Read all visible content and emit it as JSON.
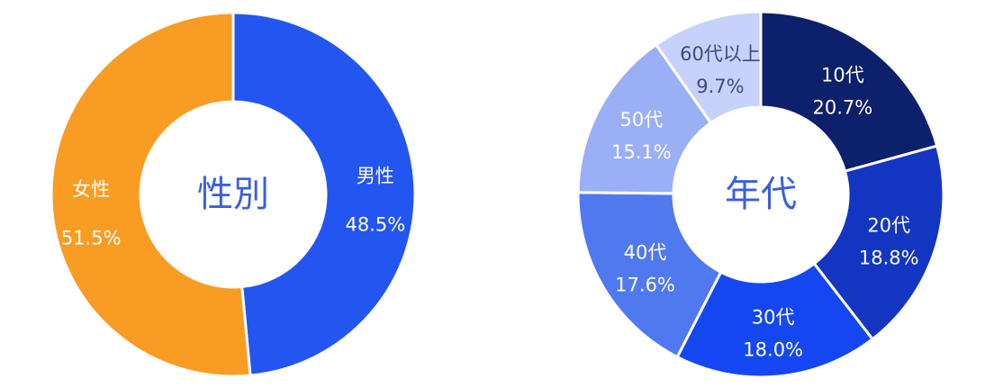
{
  "chart_data": [
    {
      "type": "pie",
      "title": "性別",
      "title_color": "#3a5fdd",
      "start_angle_deg": 0,
      "direction": "clockwise",
      "donut": true,
      "slices": [
        {
          "name": "男性",
          "value": 48.5,
          "label": "48.5%",
          "color": "#2355f0",
          "text_color": "#ffffff"
        },
        {
          "name": "女性",
          "value": 51.5,
          "label": "51.5%",
          "color": "#f99c24",
          "text_color": "#ffffff"
        }
      ]
    },
    {
      "type": "pie",
      "title": "年代",
      "title_color": "#3a5fdd",
      "start_angle_deg": 0,
      "direction": "clockwise",
      "donut": true,
      "slices": [
        {
          "name": "10代",
          "value": 20.7,
          "label": "20.7%",
          "color": "#0c206b",
          "text_color": "#ffffff"
        },
        {
          "name": "20代",
          "value": 18.8,
          "label": "18.8%",
          "color": "#1336c2",
          "text_color": "#ffffff"
        },
        {
          "name": "30代",
          "value": 18.0,
          "label": "18.0%",
          "color": "#1447f2",
          "text_color": "#ffffff"
        },
        {
          "name": "40代",
          "value": 17.6,
          "label": "17.6%",
          "color": "#5079ef",
          "text_color": "#ffffff"
        },
        {
          "name": "50代",
          "value": 15.1,
          "label": "15.1%",
          "color": "#9aaff5",
          "text_color": "#ffffff"
        },
        {
          "name": "60代以上",
          "value": 9.7,
          "label": "9.7%",
          "color": "#c6d2fa",
          "text_color": "#404a80"
        }
      ]
    }
  ]
}
